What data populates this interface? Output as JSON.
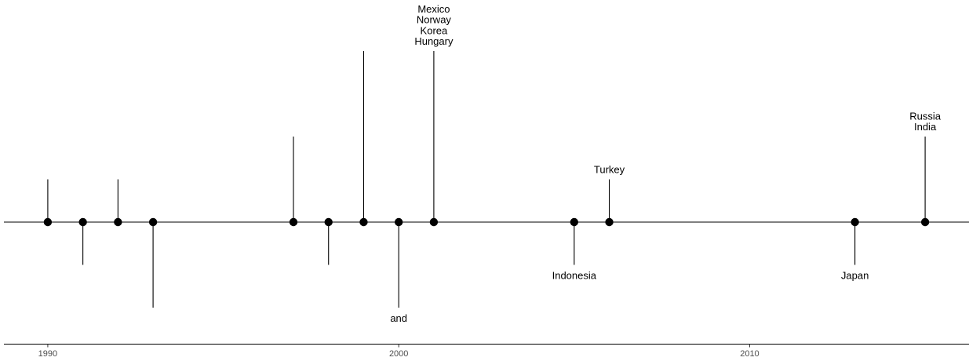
{
  "chart_data": {
    "type": "scatter",
    "title": "",
    "xlabel": "",
    "ylabel": "",
    "xlim": [
      1988.75,
      2016.25
    ],
    "ylim": [
      -4.1,
      7.8
    ],
    "x_ticks": [
      "1990",
      "2000",
      "2010"
    ],
    "grid": false,
    "legend": "none",
    "colors": {
      "line": "#000000",
      "point": "#000000",
      "tick_text": "#4d4d4d"
    },
    "events": [
      {
        "year": 1990,
        "height": 1,
        "label": ""
      },
      {
        "year": 1991,
        "height": -1,
        "label": ""
      },
      {
        "year": 1992,
        "height": 1,
        "label": ""
      },
      {
        "year": 1993,
        "height": -2,
        "label": ""
      },
      {
        "year": 1997,
        "height": 2,
        "label": ""
      },
      {
        "year": 1998,
        "height": -1,
        "label": ""
      },
      {
        "year": 1999,
        "height": 4,
        "label": ""
      },
      {
        "year": 2000,
        "height": -2,
        "label": "and"
      },
      {
        "year": 2001,
        "height": 4,
        "label": "Mexico\nNorway\nKorea\nHungary"
      },
      {
        "year": 2005,
        "height": -1,
        "label": "Indonesia"
      },
      {
        "year": 2006,
        "height": 1,
        "label": "Turkey"
      },
      {
        "year": 2013,
        "height": -1,
        "label": "Japan"
      },
      {
        "year": 2015,
        "height": 2,
        "label": "Russia\nIndia"
      }
    ]
  }
}
